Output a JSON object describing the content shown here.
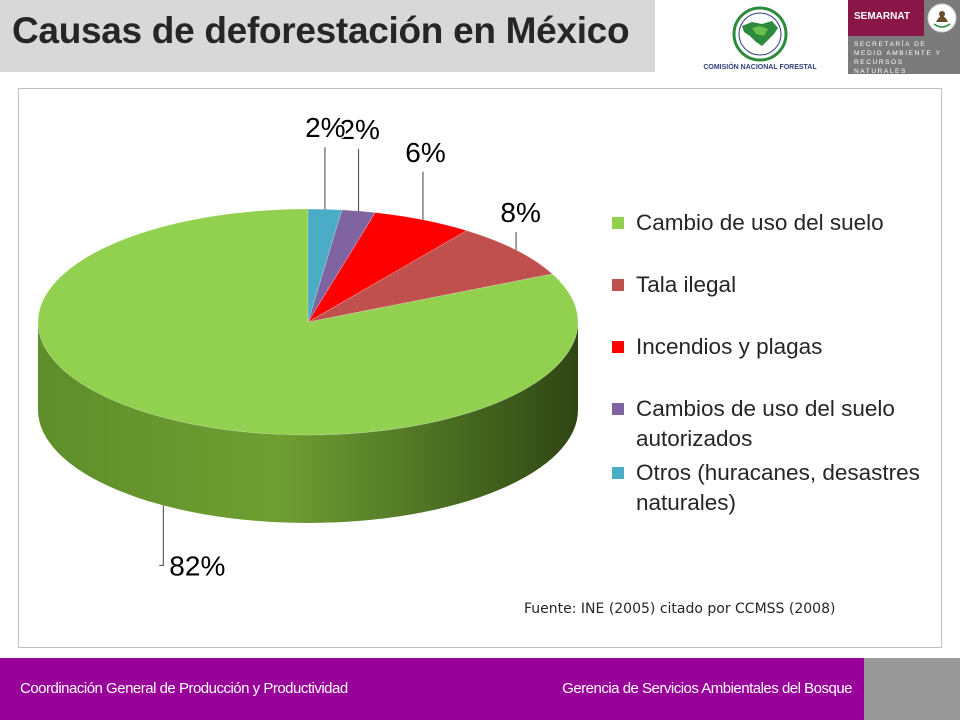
{
  "header": {
    "title": "Causas de deforestación en México",
    "conafor_logo": {
      "name": "CONAFOR",
      "subtitle": "COMISIÓN NACIONAL FORESTAL"
    },
    "semarnat_logo": {
      "name": "SEMARNAT",
      "subtitle": "SECRETARÍA DE MEDIO AMBIENTE Y RECURSOS NATURALES"
    }
  },
  "chart_data": {
    "type": "pie",
    "style": "3d",
    "title": "",
    "slices": [
      {
        "label": "Cambio de uso del suelo",
        "value": 82,
        "display": "82%",
        "color": "#92d050"
      },
      {
        "label": "Tala ilegal",
        "value": 8,
        "display": "8%",
        "color": "#c0504d"
      },
      {
        "label": "Incendios y plagas",
        "value": 6,
        "display": "6%",
        "color": "#ff0000"
      },
      {
        "label": "Cambios de uso del suelo autorizados",
        "value": 2,
        "display": "2%",
        "color": "#8064a2"
      },
      {
        "label": "Otros (huracanes, desastres naturales)",
        "value": 2,
        "display": "2%",
        "color": "#4bacc6"
      }
    ],
    "legend_position": "right"
  },
  "source": "Fuente: INE (2005) citado por CCMSS (2008)",
  "footer": {
    "left": "Coordinación General de Producción y Productividad",
    "right": "Gerencia de Servicios Ambientales del Bosque"
  }
}
